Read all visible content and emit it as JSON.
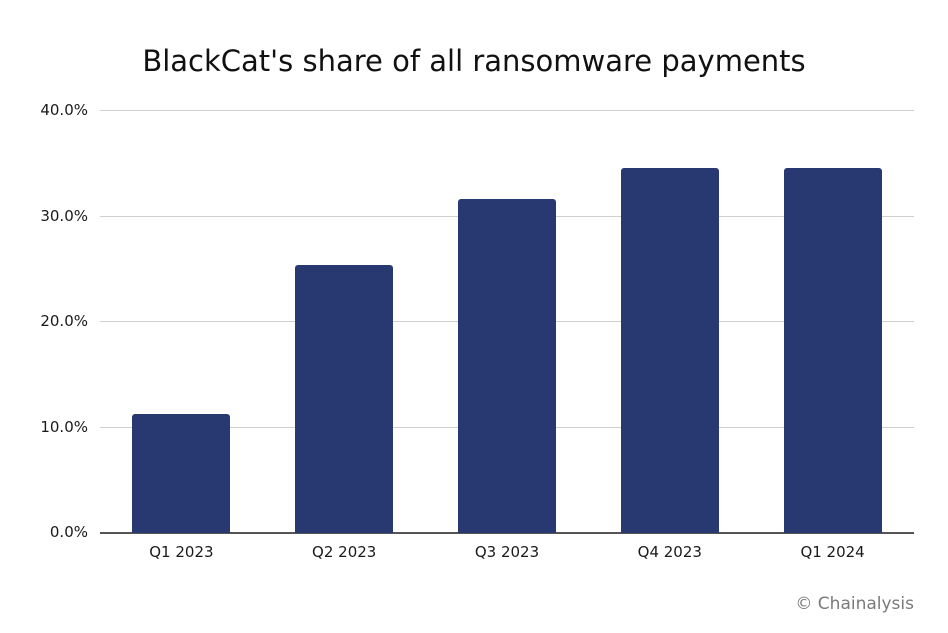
{
  "chart_data": {
    "type": "bar",
    "title": "BlackCat's share of all ransomware payments",
    "categories": [
      "Q1 2023",
      "Q2 2023",
      "Q3 2023",
      "Q4 2023",
      "Q1 2024"
    ],
    "values": [
      11.3,
      25.4,
      31.7,
      34.6,
      34.6
    ],
    "xlabel": "",
    "ylabel": "",
    "ylim": [
      0,
      40
    ],
    "yticks": [
      "0.0%",
      "10.0%",
      "20.0%",
      "30.0%",
      "40.0%"
    ],
    "grid": true,
    "legend": null,
    "bar_color": "#283870",
    "credit": "© Chainalysis"
  }
}
